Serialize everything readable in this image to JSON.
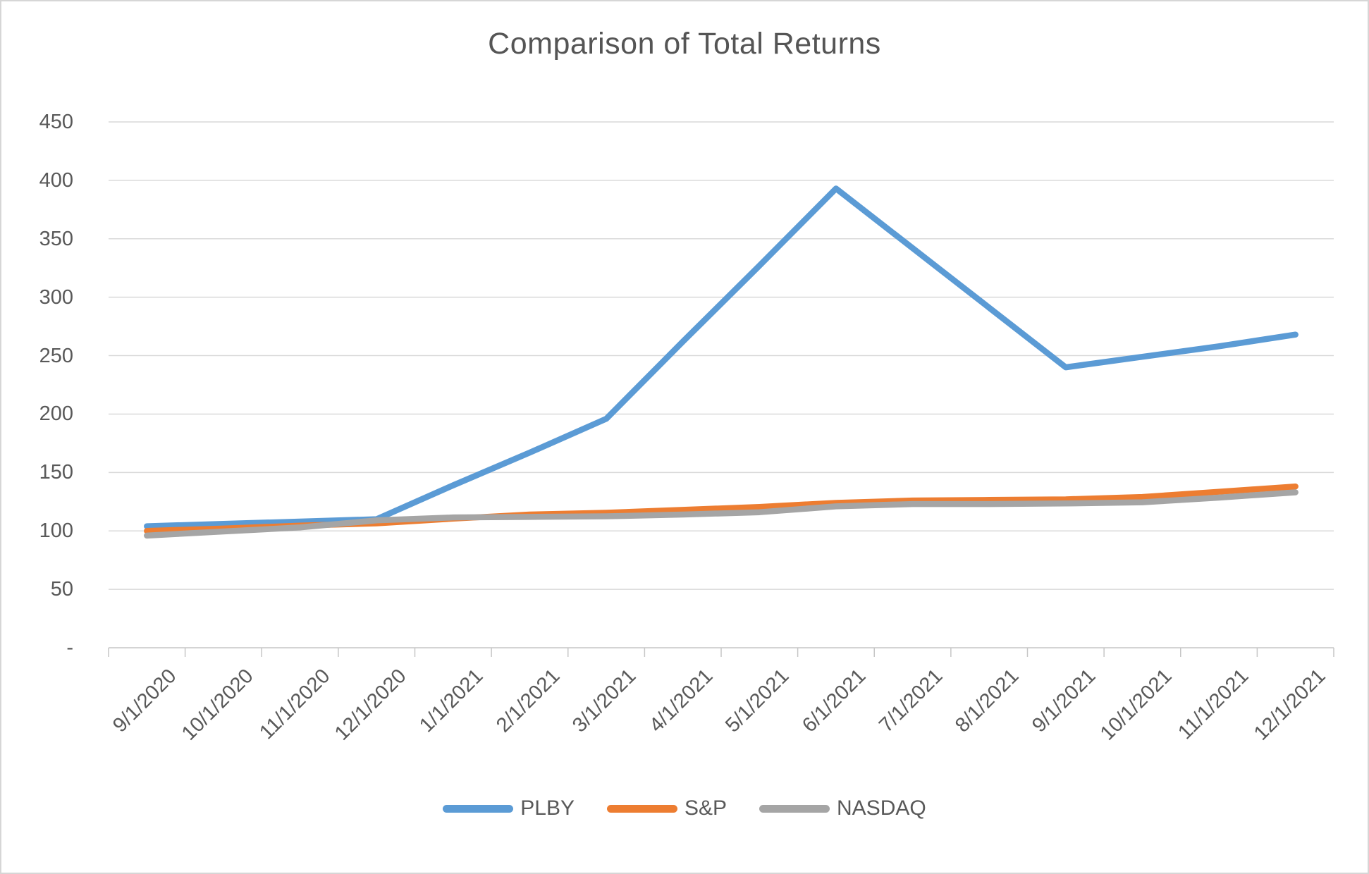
{
  "chart_data": {
    "type": "line",
    "title": "Comparison of Total Returns",
    "categories": [
      "9/1/2020",
      "10/1/2020",
      "11/1/2020",
      "12/1/2020",
      "1/1/2021",
      "2/1/2021",
      "3/1/2021",
      "4/1/2021",
      "5/1/2021",
      "6/1/2021",
      "7/1/2021",
      "8/1/2021",
      "9/1/2021",
      "10/1/2021",
      "11/1/2021",
      "12/1/2021"
    ],
    "series": [
      {
        "name": "PLBY",
        "color": "#5B9BD5",
        "values": [
          104,
          106,
          108,
          110,
          139,
          167,
          196,
          262,
          327,
          393,
          342,
          291,
          240,
          249,
          258,
          268
        ]
      },
      {
        "name": "S&P",
        "color": "#ED7D31",
        "values": [
          100,
          102,
          104.5,
          106.5,
          110.5,
          114,
          115.5,
          118,
          120.5,
          124,
          126,
          126.5,
          127,
          129,
          133.5,
          138
        ]
      },
      {
        "name": "NASDAQ",
        "color": "#A5A5A5",
        "values": [
          96,
          99.5,
          103,
          109,
          111.5,
          112,
          112.5,
          114,
          116,
          121,
          123,
          123,
          123.5,
          124.5,
          128.5,
          133
        ]
      }
    ],
    "y_axis": {
      "min": 0,
      "max": 450,
      "step": 50,
      "tick_labels": [
        "-",
        "50",
        "100",
        "150",
        "200",
        "250",
        "300",
        "350",
        "400",
        "450"
      ]
    },
    "x_axis": {
      "label_rotation_deg": 45
    },
    "grid": true,
    "legend_position": "bottom"
  },
  "colors": {
    "gridline": "#D9D9D9",
    "axis_line": "#C6C6C6",
    "text": "#595959",
    "background": "#FFFFFF",
    "frame_border": "#D6D6D6"
  }
}
